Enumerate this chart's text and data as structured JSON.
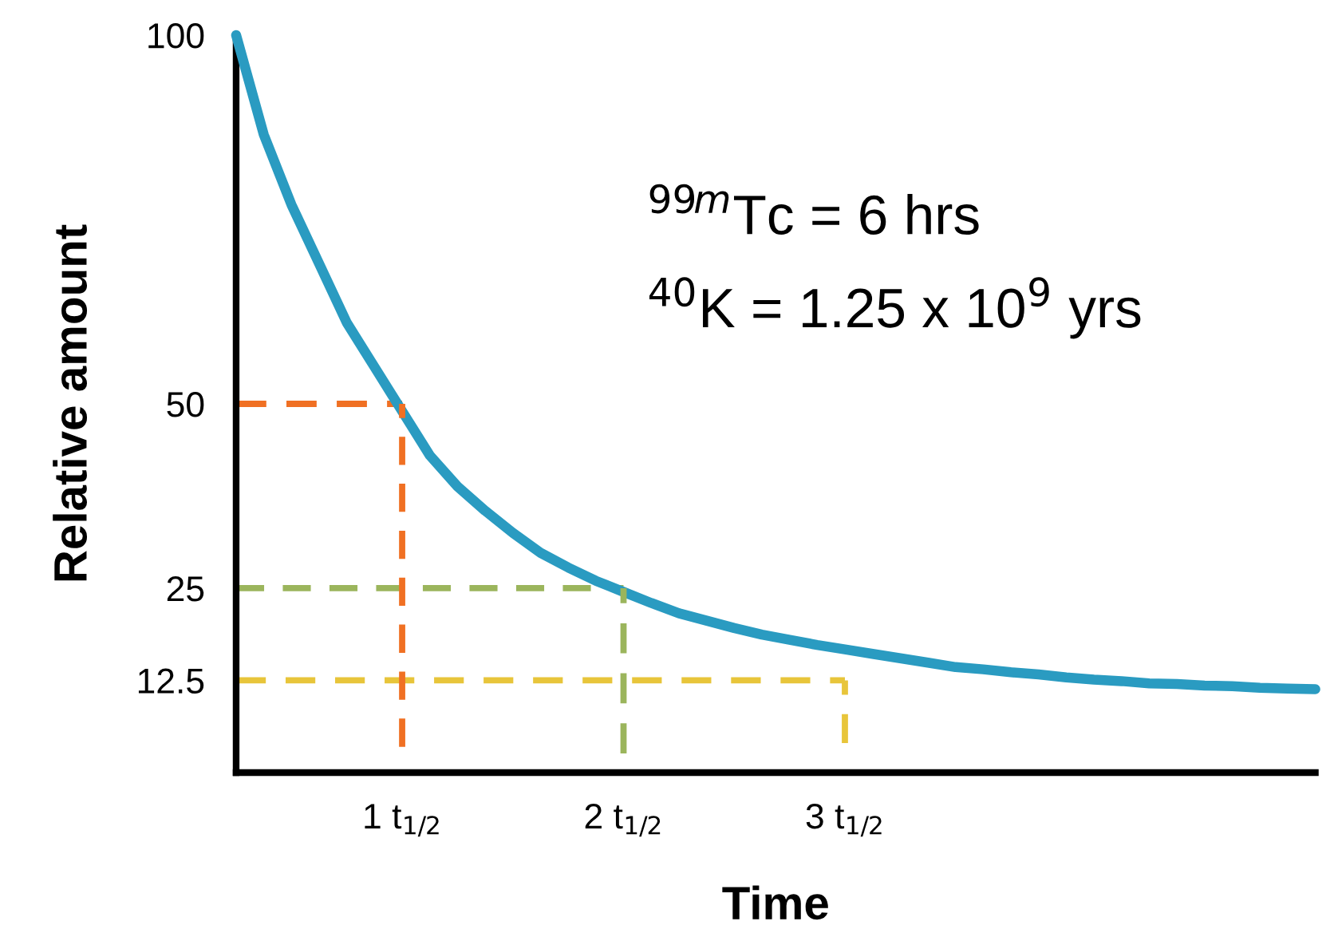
{
  "chart_data": {
    "type": "line",
    "xlabel": "Time",
    "ylabel": "Relative amount",
    "categories": [
      null,
      null,
      null,
      null,
      null,
      null,
      "1 t$_{1/2}$",
      null,
      null,
      null,
      null,
      null,
      null,
      null,
      "2 t$_{1/2}$",
      null,
      null,
      null,
      null,
      null,
      null,
      null,
      "3 t$_{1/2}$",
      null,
      null,
      null,
      null,
      null,
      null,
      null,
      null,
      null,
      null,
      null,
      null,
      null,
      null,
      null,
      null,
      null
    ],
    "ylim": [
      0,
      100
    ],
    "yticks": [
      100,
      50,
      25,
      12.5
    ],
    "grid": false,
    "legend": false,
    "marker": "none",
    "annotations": [
      "$^{99m}$Tc = 6 hrs",
      "$^{40}$K = 1.25 x 10$^{9}$ yrs"
    ],
    "series": [
      {
        "color": "#2a9bc1",
        "line_style": "solid",
        "values": [
          100,
          86.5,
          77,
          69,
          61,
          55,
          49,
          43,
          38.8,
          35.5,
          32.5,
          29.8,
          27.8,
          26,
          24.5,
          23,
          21.6,
          20.6,
          19.6,
          18.7,
          18,
          17.3,
          16.7,
          16.1,
          15.5,
          14.9,
          14.3,
          14,
          13.6,
          13.3,
          12.9,
          12.6,
          12.4,
          12.1,
          12,
          11.8,
          11.7,
          11.5,
          11.4,
          11.3
        ]
      },
      {
        "color": "#f07023",
        "line_style": "dashed",
        "values": [
          50,
          50,
          50,
          50,
          50,
          50,
          50,
          null,
          null,
          null,
          null,
          null,
          null,
          null,
          null,
          null,
          null,
          null,
          null,
          null,
          null,
          null,
          null,
          null,
          null,
          null,
          null,
          null,
          null,
          null,
          null,
          null,
          null,
          null,
          null,
          null,
          null,
          null,
          null,
          null
        ]
      },
      {
        "color": "#9bb55c",
        "line_style": "dashed",
        "values": [
          25,
          25,
          25,
          25,
          25,
          25,
          25,
          25,
          25,
          25,
          25,
          25,
          25,
          25,
          25,
          null,
          null,
          null,
          null,
          null,
          null,
          null,
          null,
          null,
          null,
          null,
          null,
          null,
          null,
          null,
          null,
          null,
          null,
          null,
          null,
          null,
          null,
          null,
          null,
          null
        ]
      },
      {
        "color": "#e8c53a",
        "line_style": "dashed",
        "values": [
          12.5,
          12.5,
          12.5,
          12.5,
          12.5,
          12.5,
          12.5,
          12.5,
          12.5,
          12.5,
          12.5,
          12.5,
          12.5,
          12.5,
          12.5,
          12.5,
          12.5,
          12.5,
          12.5,
          12.5,
          12.5,
          12.5,
          12.5,
          null,
          null,
          null,
          null,
          null,
          null,
          null,
          null,
          null,
          null,
          null,
          null,
          null,
          null,
          null,
          null,
          null
        ]
      },
      {
        "type": "bar",
        "colors": [
          null,
          null,
          null,
          null,
          null,
          null,
          "#f07023",
          null,
          null,
          null,
          null,
          null,
          null,
          null,
          "#9bb55c",
          null,
          null,
          null,
          null,
          null,
          null,
          null,
          "#e8c53a",
          null,
          null,
          null,
          null,
          null,
          null,
          null,
          null,
          null,
          null,
          null,
          null,
          null,
          null,
          null,
          null,
          null
        ],
        "line_style": "dashed",
        "base": [
          null,
          null,
          null,
          null,
          null,
          null,
          3.5,
          null,
          null,
          null,
          null,
          null,
          null,
          null,
          2.6,
          null,
          null,
          null,
          null,
          null,
          null,
          null,
          4,
          null,
          null,
          null,
          null,
          null,
          null,
          null,
          null,
          null,
          null,
          null,
          null,
          null,
          null,
          null,
          null,
          null
        ],
        "values": [
          null,
          null,
          null,
          null,
          null,
          null,
          46.5,
          null,
          null,
          null,
          null,
          null,
          null,
          null,
          22.4,
          null,
          null,
          null,
          null,
          null,
          null,
          null,
          8.5,
          null,
          null,
          null,
          null,
          null,
          null,
          null,
          null,
          null,
          null,
          null,
          null,
          null,
          null,
          null,
          null,
          null
        ]
      }
    ]
  }
}
